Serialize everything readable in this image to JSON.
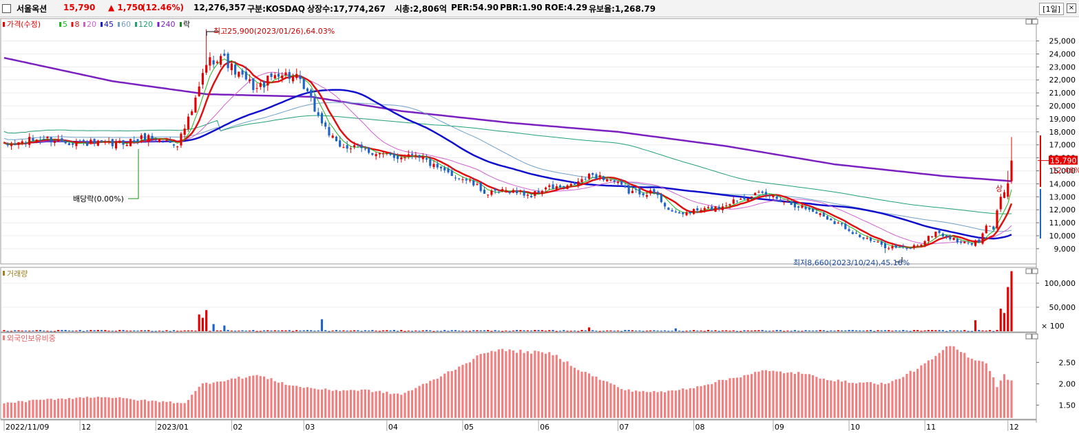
{
  "header": {
    "name": "서울옥션",
    "price": "15,790",
    "change": "▲ 1,750",
    "change_pct": "(12.46%)",
    "volume": "12,276,357",
    "market": "구분:KOSDAQ",
    "shares": "상장수:17,774,267",
    "mcap": "시총:2,806억",
    "per": "PER:54.90",
    "pbr": "PBR:1.90",
    "roe": "ROE:4.29",
    "float_ratio": "유보율:1,268.79",
    "timeframe": "[1일]",
    "close_glyph": "×"
  },
  "legend": {
    "price_label": "가격(수정)",
    "ma": [
      {
        "label": "5",
        "color": "#1fb81f"
      },
      {
        "label": "8",
        "color": "#e01010"
      },
      {
        "label": "20",
        "color": "#d060d0"
      },
      {
        "label": "45",
        "color": "#1010cc"
      },
      {
        "label": "60",
        "color": "#70a0c8"
      },
      {
        "label": "120",
        "color": "#20a070"
      },
      {
        "label": "240",
        "color": "#7a20c0"
      }
    ],
    "ex_label": "락"
  },
  "annotations": {
    "high": "최고25,900(2023/01/26),64.03%",
    "low": "최저8,660(2023/10/24),45.16%",
    "dividend": "배당락(0.00%)",
    "sang": "상",
    "last_price": "15,790",
    "last_pct": "12.46%"
  },
  "panels": {
    "volume_title": "거래량",
    "foreign_title": "외국인보유비중",
    "volume_unit": "× 100"
  },
  "colors": {
    "up": "#e60000",
    "down": "#1e64c8",
    "foreign_bar": "#f08080",
    "grid": "#cfcfcf"
  },
  "chart_data": {
    "type": "candlestick",
    "price_axis": {
      "ylim": [
        8200,
        26300
      ],
      "ticks": [
        "25,000",
        "24,000",
        "23,000",
        "22,000",
        "21,000",
        "20,000",
        "19,000",
        "18,000",
        "17,000",
        "16,000",
        "15,000",
        "14,000",
        "13,000",
        "12,000",
        "11,000",
        "10,000",
        "9,000"
      ],
      "values": [
        25000,
        24000,
        23000,
        22000,
        21000,
        20000,
        19000,
        18000,
        17000,
        16000,
        15000,
        14000,
        13000,
        12000,
        11000,
        10000,
        9000
      ]
    },
    "volume_axis": {
      "ylim": [
        0,
        130000
      ],
      "ticks": [
        "100,000",
        "50,000"
      ],
      "values": [
        100000,
        50000
      ]
    },
    "foreign_axis": {
      "ylim": [
        1.2,
        3.15
      ],
      "ticks": [
        "2.50",
        "2.00",
        "1.50"
      ],
      "values": [
        2.5,
        2.0,
        1.5
      ]
    },
    "x_labels": [
      "2022/11/09",
      "12",
      "2023/01",
      "02",
      "03",
      "04",
      "05",
      "06",
      "07",
      "08",
      "09",
      "10",
      "11",
      "12"
    ],
    "x_label_days": [
      0,
      21,
      42,
      63,
      83,
      106,
      127,
      148,
      170,
      191,
      213,
      234,
      255,
      278
    ],
    "price_keypoints": [
      [
        0,
        16900
      ],
      [
        10,
        17500
      ],
      [
        20,
        17200
      ],
      [
        30,
        17000
      ],
      [
        40,
        17600
      ],
      [
        48,
        17100
      ],
      [
        52,
        19500
      ],
      [
        56,
        23300
      ],
      [
        60,
        23900
      ],
      [
        64,
        22600
      ],
      [
        70,
        21300
      ],
      [
        76,
        22600
      ],
      [
        81,
        22100
      ],
      [
        84,
        20900
      ],
      [
        87,
        19200
      ],
      [
        92,
        17000
      ],
      [
        100,
        16600
      ],
      [
        108,
        16000
      ],
      [
        114,
        16400
      ],
      [
        120,
        15100
      ],
      [
        128,
        14300
      ],
      [
        134,
        13200
      ],
      [
        140,
        13500
      ],
      [
        146,
        13100
      ],
      [
        150,
        13700
      ],
      [
        156,
        13700
      ],
      [
        163,
        14700
      ],
      [
        168,
        14300
      ],
      [
        173,
        13400
      ],
      [
        180,
        13300
      ],
      [
        184,
        12100
      ],
      [
        186,
        11600
      ],
      [
        191,
        11900
      ],
      [
        198,
        12200
      ],
      [
        202,
        12700
      ],
      [
        207,
        13200
      ],
      [
        212,
        13100
      ],
      [
        218,
        12500
      ],
      [
        225,
        11800
      ],
      [
        232,
        10800
      ],
      [
        238,
        9800
      ],
      [
        244,
        9200
      ],
      [
        250,
        9000
      ],
      [
        254,
        9400
      ],
      [
        258,
        10300
      ],
      [
        262,
        9800
      ],
      [
        266,
        9400
      ],
      [
        270,
        9500
      ],
      [
        272,
        10700
      ],
      [
        274,
        10600
      ],
      [
        276,
        13000
      ],
      [
        278,
        13700
      ],
      [
        279,
        15790
      ]
    ],
    "high_point": {
      "day": 56,
      "value": 25900
    },
    "low_point": {
      "day": 244,
      "value": 8660
    },
    "last_close": 15790,
    "sma_periods": [
      5,
      8,
      20,
      45,
      60,
      120
    ],
    "ma240_keypoints": [
      [
        0,
        23700
      ],
      [
        30,
        21900
      ],
      [
        56,
        20900
      ],
      [
        85,
        20700
      ],
      [
        110,
        19600
      ],
      [
        140,
        18700
      ],
      [
        170,
        18000
      ],
      [
        200,
        16900
      ],
      [
        230,
        15500
      ],
      [
        260,
        14600
      ],
      [
        279,
        14200
      ]
    ],
    "volume_spikes": [
      [
        54,
        35000
      ],
      [
        55,
        28000
      ],
      [
        56,
        44000
      ],
      [
        58,
        15000
      ],
      [
        61,
        12000
      ],
      [
        88,
        25000
      ],
      [
        162,
        8000
      ],
      [
        186,
        6000
      ],
      [
        269,
        23000
      ],
      [
        276,
        47000
      ],
      [
        277,
        38000
      ],
      [
        278,
        92000
      ],
      [
        279,
        125000
      ]
    ],
    "foreign_keypoints": [
      [
        0,
        1.55
      ],
      [
        15,
        1.65
      ],
      [
        27,
        1.7
      ],
      [
        40,
        1.6
      ],
      [
        50,
        1.55
      ],
      [
        55,
        2.0
      ],
      [
        62,
        2.1
      ],
      [
        70,
        2.2
      ],
      [
        80,
        1.95
      ],
      [
        90,
        1.85
      ],
      [
        100,
        1.85
      ],
      [
        110,
        1.75
      ],
      [
        118,
        2.05
      ],
      [
        127,
        2.45
      ],
      [
        135,
        2.8
      ],
      [
        145,
        2.75
      ],
      [
        152,
        2.7
      ],
      [
        160,
        2.3
      ],
      [
        172,
        1.85
      ],
      [
        182,
        1.8
      ],
      [
        190,
        1.9
      ],
      [
        200,
        2.1
      ],
      [
        210,
        2.3
      ],
      [
        220,
        2.25
      ],
      [
        232,
        2.05
      ],
      [
        245,
        2.0
      ],
      [
        255,
        2.45
      ],
      [
        262,
        2.9
      ],
      [
        268,
        2.6
      ],
      [
        272,
        2.5
      ],
      [
        275,
        1.95
      ],
      [
        277,
        2.2
      ],
      [
        279,
        2.05
      ]
    ]
  }
}
